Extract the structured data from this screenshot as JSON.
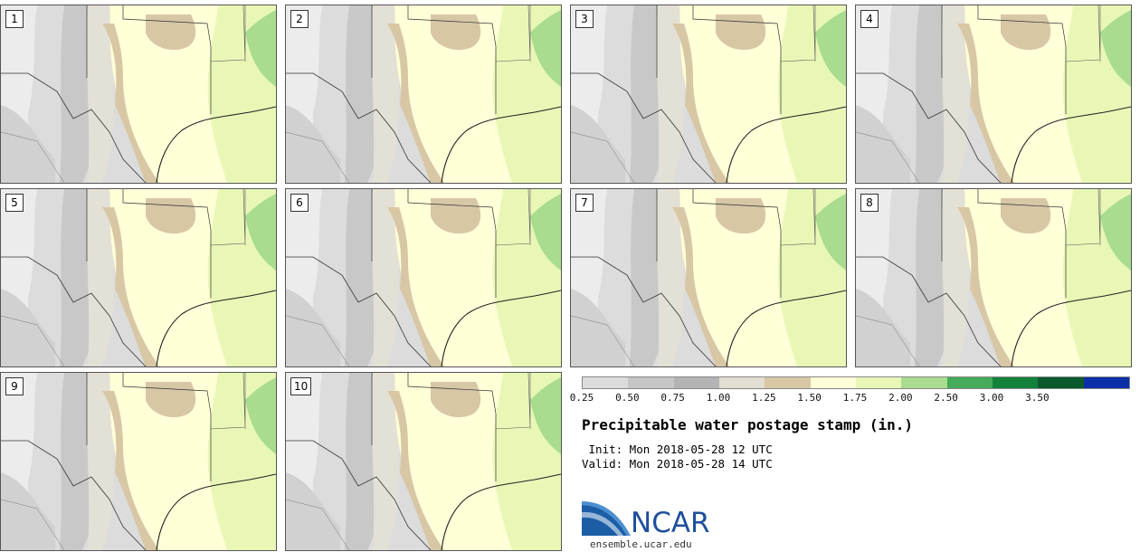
{
  "panels": [
    {
      "label": "1"
    },
    {
      "label": "2"
    },
    {
      "label": "3"
    },
    {
      "label": "4"
    },
    {
      "label": "5"
    },
    {
      "label": "6"
    },
    {
      "label": "7"
    },
    {
      "label": "8"
    },
    {
      "label": "9"
    },
    {
      "label": "10"
    }
  ],
  "legend": {
    "ticks": [
      "0.25",
      "0.50",
      "0.75",
      "1.00",
      "1.25",
      "1.50",
      "1.75",
      "2.00",
      "2.50",
      "3.00",
      "3.50"
    ],
    "colors": [
      "#dcdcdc",
      "#c6c6c6",
      "#b4b4b4",
      "#e2ded2",
      "#d8c7a5",
      "#ffffd8",
      "#e8f7b6",
      "#a9dc8e",
      "#45ab5a",
      "#12813c",
      "#0a5a2d",
      "#0a2fa8"
    ]
  },
  "title": "Precipitable water postage stamp (in.)",
  "init_line": " Init: Mon 2018-05-28 12 UTC",
  "valid_line": "Valid: Mon 2018-05-28 14 UTC",
  "logo_text": "NCAR",
  "site": "ensemble.ucar.edu"
}
